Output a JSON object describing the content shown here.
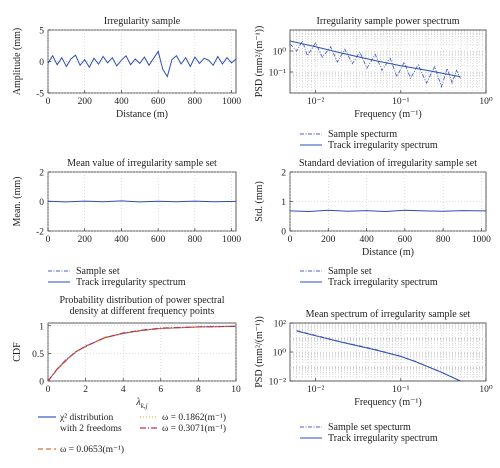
{
  "chart_data": [
    {
      "type": "line",
      "title": "Irregularity sample",
      "xlabel": "Distance (m)",
      "ylabel": "Amplitude (mm)",
      "xlim": [
        0,
        1024
      ],
      "ylim": [
        -5,
        5
      ],
      "xticks": [
        0,
        200,
        400,
        600,
        800,
        1000
      ],
      "yticks": [
        -5,
        0,
        5
      ],
      "grid": true,
      "series": [
        {
          "x": [
            0,
            25,
            50,
            75,
            100,
            125,
            150,
            175,
            200,
            225,
            250,
            275,
            300,
            325,
            350,
            375,
            400,
            425,
            450,
            475,
            500,
            525,
            550,
            575,
            600,
            625,
            650,
            675,
            700,
            725,
            750,
            775,
            800,
            825,
            850,
            875,
            900,
            925,
            950,
            975,
            1000,
            1024
          ],
          "values": [
            -0.3,
            0.9,
            -0.5,
            0.6,
            -0.8,
            0.4,
            1.0,
            -0.6,
            0.3,
            -0.9,
            0.5,
            -0.4,
            0.8,
            -0.2,
            0.6,
            -0.7,
            0.2,
            0.9,
            -0.5,
            0.4,
            -0.3,
            0.7,
            -0.6,
            0.5,
            1.6,
            -1.2,
            -2.4,
            0.3,
            0.9,
            -0.4,
            0.6,
            -0.8,
            0.7,
            -0.3,
            0.5,
            0.2,
            -0.6,
            0.8,
            -0.4,
            0.6,
            -0.2,
            0.4
          ]
        }
      ]
    },
    {
      "type": "line",
      "title": "Irregularity sample power spectrum",
      "xlabel": "Frequency (m<sup>−1</sup>)",
      "xlabel_text": "Frequency (m",
      "xlabel_sup": "−1",
      "xlabel_end": ")",
      "ylabel": "PSD (mm²/(m⁻¹))",
      "xscale": "log",
      "yscale": "log",
      "xlim": [
        0.005,
        1
      ],
      "ylim": [
        0.01,
        10
      ],
      "xticks": [
        0.01,
        0.1,
        1
      ],
      "xtick_labels": [
        "10⁻²",
        "10⁻¹",
        "10⁰"
      ],
      "yticks": [
        0.1,
        1
      ],
      "ytick_labels": [
        "10⁻¹",
        "10⁰"
      ],
      "grid": true,
      "legend": [
        "Sample specturm",
        "Track irregularity spectrum"
      ],
      "series": [
        {
          "name": "Sample specturm",
          "x": [
            0.005,
            0.006,
            0.007,
            0.008,
            0.01,
            0.012,
            0.015,
            0.018,
            0.022,
            0.027,
            0.033,
            0.04,
            0.05,
            0.06,
            0.075,
            0.09,
            0.11,
            0.13,
            0.16,
            0.2,
            0.25,
            0.3,
            0.35,
            0.4,
            0.45,
            0.5
          ],
          "values": [
            2.2,
            1.0,
            3.0,
            0.6,
            2.4,
            0.5,
            1.6,
            0.3,
            1.2,
            0.25,
            0.9,
            0.15,
            0.7,
            0.12,
            0.45,
            0.06,
            0.3,
            0.05,
            0.22,
            0.03,
            0.18,
            0.02,
            0.15,
            0.03,
            0.12,
            0.05
          ]
        },
        {
          "name": "Track irregularity spectrum",
          "x": [
            0.005,
            0.01,
            0.02,
            0.05,
            0.1,
            0.2,
            0.5
          ],
          "values": [
            3.0,
            1.6,
            0.8,
            0.35,
            0.2,
            0.12,
            0.06
          ]
        }
      ]
    },
    {
      "type": "line",
      "title": "Mean value of irregularity sample set",
      "xlabel": "",
      "ylabel": "Mean. (mm)",
      "xlim": [
        0,
        1024
      ],
      "ylim": [
        -2,
        2
      ],
      "xticks": [
        0,
        200,
        400,
        600,
        800,
        1000
      ],
      "yticks": [
        -2,
        0,
        2
      ],
      "grid": true,
      "series": [
        {
          "x": [
            0,
            100,
            200,
            300,
            400,
            500,
            600,
            700,
            800,
            900,
            1024
          ],
          "values": [
            0.02,
            -0.03,
            0.03,
            -0.02,
            0.04,
            -0.03,
            0.02,
            -0.02,
            0.03,
            -0.02,
            0.01
          ]
        }
      ]
    },
    {
      "type": "line",
      "title": "Standard deviation of irregularity sample set",
      "xlabel": "Distance (m)",
      "ylabel": "Std. (mm)",
      "xlim": [
        0,
        1024
      ],
      "ylim": [
        0,
        2
      ],
      "xticks": [
        0,
        200,
        400,
        600,
        800,
        1000
      ],
      "yticks": [
        0,
        1,
        2
      ],
      "grid": true,
      "series": [
        {
          "x": [
            0,
            100,
            200,
            300,
            400,
            500,
            600,
            700,
            800,
            900,
            1024
          ],
          "values": [
            0.68,
            0.66,
            0.7,
            0.67,
            0.69,
            0.66,
            0.7,
            0.68,
            0.67,
            0.69,
            0.68
          ]
        }
      ]
    },
    {
      "type": "line",
      "title_lines": [
        "Probability distribution of power spectral",
        "density at different frequency points"
      ],
      "xlabel": "λk,j",
      "ylabel": "CDF",
      "xlim": [
        0,
        10
      ],
      "ylim": [
        0,
        1.05
      ],
      "xticks": [
        0,
        2,
        4,
        6,
        8,
        10
      ],
      "yticks": [
        0,
        0.5,
        1
      ],
      "ytick_labels": [
        "0",
        "0.5",
        "1"
      ],
      "grid": true,
      "legend_entries": [
        {
          "label": "χ² distribution",
          "line2": "with 2 freedoms",
          "color": "#3a5fcd",
          "dash": ""
        },
        {
          "label": "ω = 0.1862(m⁻¹)",
          "color": "#c8c840",
          "dash": "1,2"
        },
        {
          "label": "ω = 0.0653(m⁻¹)",
          "color": "#e07020",
          "dash": "5,3"
        },
        {
          "label": "ω = 0.3071(m⁻¹)",
          "color": "#c03060",
          "dash": "6,2,1,2"
        }
      ],
      "series": [
        {
          "name": "χ² distribution with 2 freedoms",
          "x": [
            0,
            0.5,
            1,
            1.5,
            2,
            3,
            4,
            5,
            6,
            8,
            10
          ],
          "values": [
            0,
            0.22,
            0.39,
            0.53,
            0.63,
            0.78,
            0.86,
            0.92,
            0.95,
            0.98,
            0.99
          ]
        },
        {
          "name": "ω = 0.1862(m⁻¹)",
          "x": [
            0,
            0.5,
            1,
            1.5,
            2,
            3,
            4,
            5,
            6,
            8,
            10
          ],
          "values": [
            0,
            0.23,
            0.4,
            0.52,
            0.64,
            0.77,
            0.87,
            0.92,
            0.95,
            0.98,
            0.995
          ]
        },
        {
          "name": "ω = 0.0653(m⁻¹)",
          "x": [
            0,
            0.5,
            1,
            1.5,
            2,
            3,
            4,
            5,
            6,
            8,
            10
          ],
          "values": [
            0,
            0.21,
            0.38,
            0.54,
            0.62,
            0.79,
            0.86,
            0.91,
            0.95,
            0.98,
            0.99
          ]
        },
        {
          "name": "ω = 0.3071(m⁻¹)",
          "x": [
            0,
            0.5,
            1,
            1.5,
            2,
            3,
            4,
            5,
            6,
            8,
            10
          ],
          "values": [
            0,
            0.22,
            0.4,
            0.53,
            0.63,
            0.78,
            0.87,
            0.92,
            0.96,
            0.98,
            0.99
          ]
        }
      ]
    },
    {
      "type": "line",
      "title": "Mean spectrum of irregularity sample set",
      "xlabel": "Frequency (m⁻¹)",
      "ylabel": "PSD (mm²/(m⁻¹))",
      "xscale": "log",
      "yscale": "log",
      "xlim": [
        0.005,
        1
      ],
      "ylim": [
        0.01,
        100
      ],
      "xticks": [
        0.01,
        0.1,
        1
      ],
      "xtick_labels": [
        "10⁻²",
        "10⁻¹",
        "10⁰"
      ],
      "yticks": [
        0.01,
        1,
        100
      ],
      "ytick_labels": [
        "10⁻²",
        "10⁰",
        "10²"
      ],
      "grid": true,
      "series": [
        {
          "name": "Sample set specturm",
          "x": [
            0.006,
            0.01,
            0.02,
            0.05,
            0.1,
            0.15,
            0.3,
            0.5
          ],
          "values": [
            30,
            14,
            5,
            1.5,
            0.5,
            0.22,
            0.04,
            0.01
          ]
        },
        {
          "name": "Track irregularity spectrum",
          "x": [
            0.006,
            0.01,
            0.02,
            0.05,
            0.1,
            0.15,
            0.3,
            0.5
          ],
          "values": [
            28,
            13,
            4.8,
            1.4,
            0.5,
            0.21,
            0.04,
            0.01
          ]
        }
      ]
    }
  ],
  "legends": {
    "spectrum": [
      "Sample specturm",
      "Track irregularity spectrum"
    ],
    "mid": [
      "Sample set",
      "Track irregularity spectrum"
    ],
    "bottom": [
      "Sample set specturm",
      "Track irregularity spectrum"
    ]
  },
  "colors": {
    "line": "#2c4fb4",
    "line_dash": "#4b5fc8",
    "grid": "#bdbdbd"
  }
}
